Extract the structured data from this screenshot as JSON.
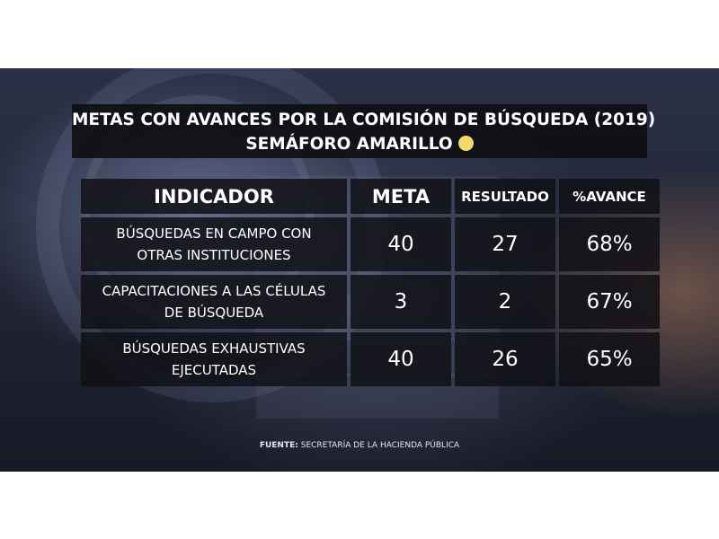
{
  "title": {
    "line1": "METAS CON AVANCES POR LA COMISIÓN DE BÚSQUEDA (2019)",
    "line2": "SEMÁFORO AMARILLO",
    "indicator_color": "#f3d96a"
  },
  "chart_data": {
    "type": "table",
    "columns": [
      "INDICADOR",
      "META",
      "RESULTADO",
      "%AVANCE"
    ],
    "rows": [
      {
        "indicador": "BÚSQUEDAS EN CAMPO CON OTRAS INSTITUCIONES",
        "indicador_lines": [
          "BÚSQUEDAS EN CAMPO CON",
          "OTRAS INSTITUCIONES"
        ],
        "meta": "40",
        "resultado": "27",
        "avance": "68%"
      },
      {
        "indicador": "CAPACITACIONES A LAS CÉLULAS DE BÚSQUEDA",
        "indicador_lines": [
          "CAPACITACIONES A LAS CÉLULAS",
          "DE BÚSQUEDA"
        ],
        "meta": "3",
        "resultado": "2",
        "avance": "67%"
      },
      {
        "indicador": "BÚSQUEDAS EXHAUSTIVAS EJECUTADAS",
        "indicador_lines": [
          "BÚSQUEDAS EXHAUSTIVAS",
          "EJECUTADAS"
        ],
        "meta": "40",
        "resultado": "26",
        "avance": "65%"
      }
    ]
  },
  "source": {
    "label": "FUENTE:",
    "text": "SECRETARÍA DE LA HACIENDA PÚBLICA"
  }
}
